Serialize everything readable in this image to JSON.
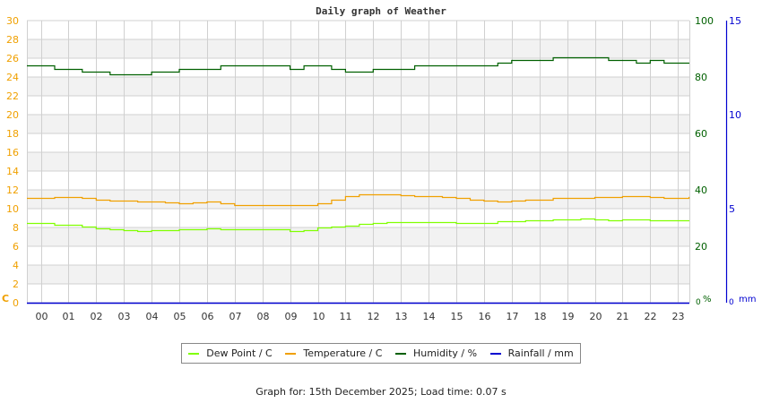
{
  "title": "Daily graph of Weather",
  "footer": "Graph for: 15th December 2025; Load time: 0.07 s",
  "colors": {
    "dew_point": "#80ff00",
    "temperature": "#f0a000",
    "humidity": "#006000",
    "rainfall": "#0000d0",
    "left_axis": "#f0a000",
    "humidity_axis": "#006000",
    "rain_axis": "#0000d0",
    "grid": "#d0d0d0",
    "band": "#f2f2f2"
  },
  "legend": [
    {
      "label": "Dew Point / C",
      "color": "#80ff00"
    },
    {
      "label": "Temperature / C",
      "color": "#f0a000"
    },
    {
      "label": "Humidity / %",
      "color": "#006000"
    },
    {
      "label": "Rainfall / mm",
      "color": "#0000d0"
    }
  ],
  "chart_data": {
    "type": "line",
    "title": "Daily graph of Weather",
    "xlabel": "",
    "x": [
      "00",
      "01",
      "02",
      "03",
      "04",
      "05",
      "06",
      "07",
      "08",
      "09",
      "10",
      "11",
      "12",
      "13",
      "14",
      "15",
      "16",
      "17",
      "18",
      "19",
      "20",
      "21",
      "22",
      "23"
    ],
    "axes": {
      "left": {
        "label": "C",
        "ticks": [
          0,
          2,
          4,
          6,
          8,
          10,
          12,
          14,
          16,
          18,
          20,
          22,
          24,
          26,
          28,
          30
        ],
        "ylim": [
          0,
          30
        ]
      },
      "right_humidity": {
        "label": "%",
        "ticks": [
          0,
          20,
          40,
          60,
          80,
          100
        ],
        "ylim": [
          0,
          100
        ]
      },
      "right_rain": {
        "label": "mm",
        "ticks": [
          0,
          5,
          10,
          15
        ],
        "ylim": [
          0,
          15
        ]
      }
    },
    "grid": true,
    "legend_position": "bottom",
    "series": [
      {
        "name": "Dew Point / C",
        "axis": "left",
        "hours": [
          -0.5,
          0,
          0.5,
          1,
          1.5,
          2,
          2.5,
          3,
          3.5,
          4,
          4.5,
          5,
          5.5,
          6,
          6.5,
          7,
          7.5,
          8,
          8.5,
          9,
          9.5,
          10,
          10.5,
          11,
          11.5,
          12,
          12.5,
          13,
          13.5,
          14,
          14.5,
          15,
          15.5,
          16,
          16.5,
          17,
          17.5,
          18,
          18.5,
          19,
          19.5,
          20,
          20.5,
          21,
          21.5,
          22,
          22.5,
          23,
          23.4
        ],
        "values": [
          8.5,
          8.5,
          8.3,
          8.3,
          8.1,
          7.9,
          7.8,
          7.7,
          7.6,
          7.7,
          7.7,
          7.8,
          7.8,
          7.9,
          7.8,
          7.8,
          7.8,
          7.8,
          7.8,
          7.6,
          7.7,
          8.0,
          8.1,
          8.2,
          8.4,
          8.5,
          8.6,
          8.6,
          8.6,
          8.6,
          8.6,
          8.5,
          8.5,
          8.5,
          8.7,
          8.7,
          8.8,
          8.8,
          8.9,
          8.9,
          9.0,
          8.9,
          8.8,
          8.9,
          8.9,
          8.8,
          8.8,
          8.8,
          8.8
        ]
      },
      {
        "name": "Temperature / C",
        "axis": "left",
        "hours": [
          -0.5,
          0,
          0.5,
          1,
          1.5,
          2,
          2.5,
          3,
          3.5,
          4,
          4.5,
          5,
          5.5,
          6,
          6.5,
          7,
          7.5,
          8,
          8.5,
          9,
          9.5,
          10,
          10.5,
          11,
          11.5,
          12,
          12.5,
          13,
          13.5,
          14,
          14.5,
          15,
          15.5,
          16,
          16.5,
          17,
          17.5,
          18,
          18.5,
          19,
          19.5,
          20,
          20.5,
          21,
          21.5,
          22,
          22.5,
          23,
          23.4
        ],
        "values": [
          11.1,
          11.1,
          11.2,
          11.2,
          11.1,
          11.0,
          10.9,
          10.9,
          10.8,
          10.8,
          10.7,
          10.6,
          10.7,
          10.8,
          10.6,
          10.4,
          10.4,
          10.4,
          10.4,
          10.4,
          10.4,
          10.6,
          11.0,
          11.3,
          11.5,
          11.5,
          11.5,
          11.4,
          11.3,
          11.3,
          11.2,
          11.1,
          11.0,
          10.9,
          10.8,
          10.9,
          11.0,
          11.0,
          11.1,
          11.1,
          11.1,
          11.2,
          11.2,
          11.3,
          11.3,
          11.2,
          11.1,
          11.1,
          11.2
        ]
      },
      {
        "name": "Humidity / %",
        "axis": "right_humidity",
        "hours": [
          -0.5,
          0,
          0.5,
          1,
          1.5,
          2,
          2.5,
          3,
          3.5,
          4,
          4.5,
          5,
          5.5,
          6,
          6.5,
          7,
          7.5,
          8,
          8.5,
          9,
          9.5,
          10,
          10.5,
          11,
          11.5,
          12,
          12.5,
          13,
          13.5,
          14,
          14.5,
          15,
          15.5,
          16,
          16.5,
          17,
          17.5,
          18,
          18.5,
          19,
          19.5,
          20,
          20.5,
          21,
          21.5,
          22,
          22.5,
          23,
          23.4
        ],
        "values": [
          84,
          84,
          83,
          83,
          82,
          82,
          81,
          81,
          81,
          82,
          82,
          83,
          83,
          83,
          84,
          84,
          84,
          84,
          84,
          83,
          84,
          84,
          83,
          82,
          82,
          83,
          83,
          83,
          84,
          84,
          84,
          84,
          84,
          84,
          85,
          86,
          86,
          86,
          87,
          87,
          87,
          87,
          86,
          86,
          85,
          86,
          85,
          85,
          85
        ]
      },
      {
        "name": "Rainfall / mm",
        "axis": "right_rain",
        "hours": [
          -0.5,
          23.4
        ],
        "values": [
          0,
          0
        ]
      }
    ]
  }
}
